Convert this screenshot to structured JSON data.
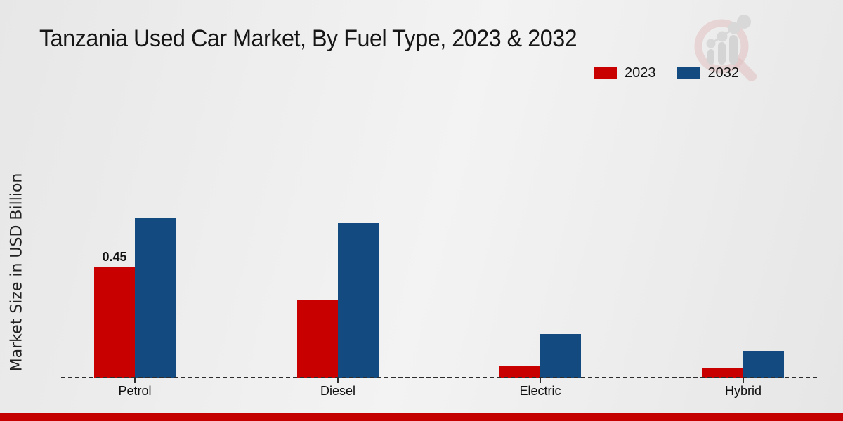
{
  "page": {
    "background_color": "#ececec",
    "bottom_strip_color": "#c40000"
  },
  "watermark": {
    "description": "magnifying-glass with bar-trend logo, faded"
  },
  "chart_data": {
    "type": "bar",
    "title": "Tanzania Used Car Market, By Fuel Type, 2023 & 2032",
    "xlabel": "",
    "ylabel": "Market Size in USD Billion",
    "categories": [
      "Petrol",
      "Diesel",
      "Electric",
      "Hybrid"
    ],
    "series": [
      {
        "name": "2023",
        "color": "#c80000",
        "values": [
          0.45,
          0.32,
          0.05,
          0.04
        ],
        "labels": [
          "0.45",
          "",
          "",
          ""
        ]
      },
      {
        "name": "2032",
        "color": "#134b80",
        "values": [
          0.65,
          0.63,
          0.18,
          0.11
        ],
        "labels": [
          "",
          "",
          "",
          ""
        ]
      }
    ],
    "ylim": [
      0,
      0.7
    ],
    "grid": false,
    "y_axis_ticks_visible": false,
    "legend_position": "top-right",
    "baseline_style": "dashed"
  }
}
